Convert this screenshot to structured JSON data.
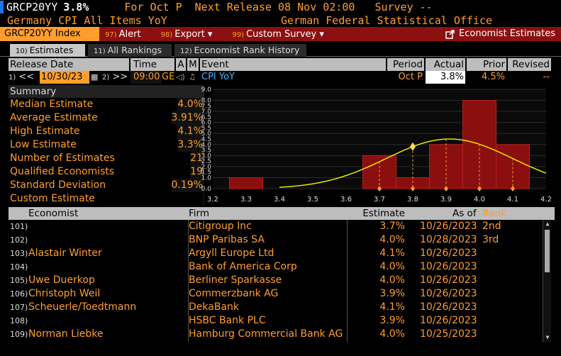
{
  "header": {
    "ticker": "GRCP20YY",
    "value": "3.8%",
    "for_text": "For Oct P",
    "next_release": "Next Release 08 Nov 02:00",
    "survey": "Survey --",
    "description": "Germany CPI All Items YoY",
    "source": "German Federal Statistical Office"
  },
  "toolbar": {
    "security": "GRCP20YY Index",
    "alert": {
      "num": "97)",
      "label": "Alert"
    },
    "export": {
      "num": "98)",
      "label": "Export ▾"
    },
    "custom_survey": {
      "num": "99)",
      "label": "Custom Survey ▾"
    },
    "economist_estimates": "Economist Estimates"
  },
  "tabs": [
    {
      "num": "10)",
      "label": "Estimates"
    },
    {
      "num": "11)",
      "label": "All Rankings"
    },
    {
      "num": "12)",
      "label": "Economist Rank History"
    }
  ],
  "release_header": {
    "release_date": "Release Date",
    "time": "Time",
    "a": "A",
    "m": "M",
    "event": "Event",
    "period": "Period",
    "actual": "Actual",
    "prior": "Prior",
    "revised": "Revised"
  },
  "release_row": {
    "prev_num": "1)",
    "prev": "<<",
    "date": "10/30/23",
    "next_num": "2)",
    "next": ">>",
    "time": "09:00",
    "zone": "GE",
    "event": "CPI YoY",
    "period": "Oct P",
    "actual": "3.8%",
    "prior": "4.5%",
    "revised": "--"
  },
  "summary": {
    "title": "Summary",
    "rows": [
      {
        "label": "Median Estimate",
        "value": "4.0%"
      },
      {
        "label": "Average Estimate",
        "value": "3.91%"
      },
      {
        "label": "High Estimate",
        "value": "4.1%"
      },
      {
        "label": "Low Estimate",
        "value": "3.3%"
      },
      {
        "label": "Number of Estimates",
        "value": "21"
      },
      {
        "label": "Qualified Economists",
        "value": "19"
      },
      {
        "label": "Standard Deviation",
        "value": "0.19%"
      },
      {
        "label": "Custom Estimate",
        "value": ""
      }
    ]
  },
  "chart_data": {
    "type": "bar",
    "x": [
      3.3,
      3.7,
      3.8,
      3.9,
      4.0,
      4.1
    ],
    "values": [
      1,
      3,
      1,
      4,
      8,
      4
    ],
    "xlim": [
      3.2,
      4.2
    ],
    "ylim": [
      0,
      9
    ],
    "x_ticks": [
      "3.2",
      "3.3",
      "3.4",
      "3.5",
      "3.6",
      "3.7",
      "3.8",
      "3.9",
      "4.0",
      "4.1",
      "4.2"
    ],
    "y_ticks": [
      "0.0",
      "1.0",
      "1.5",
      "2.0",
      "2.5",
      "3.0",
      "3.5",
      "4.0",
      "4.5",
      "5.0",
      "5.5",
      "6.0",
      "6.5",
      "7.0",
      "7.5",
      "8.0",
      "9.0"
    ],
    "markers": [
      3.7,
      3.8,
      3.9,
      4.0,
      4.1
    ],
    "bar_color": "#8b0f0f",
    "curve_color": "#e6e600",
    "marker_color": "#ff9e2c"
  },
  "table": {
    "headers": {
      "economist": "Economist",
      "firm": "Firm",
      "estimate": "Estimate",
      "as_of": "As of",
      "rank": "Rank",
      "sort": "↑"
    },
    "rows": [
      {
        "idx": "101)",
        "economist": "",
        "firm": "Citigroup Inc",
        "estimate": "3.7%",
        "as_of": "10/26/2023",
        "rank": "2nd"
      },
      {
        "idx": "102)",
        "economist": "",
        "firm": "BNP Paribas SA",
        "estimate": "4.0%",
        "as_of": "10/28/2023",
        "rank": "3rd"
      },
      {
        "idx": "103)",
        "economist": "Alastair Winter",
        "firm": "Argyll Europe Ltd",
        "estimate": "4.1%",
        "as_of": "10/26/2023",
        "rank": ""
      },
      {
        "idx": "104)",
        "economist": "",
        "firm": "Bank of America Corp",
        "estimate": "4.0%",
        "as_of": "10/26/2023",
        "rank": ""
      },
      {
        "idx": "105)",
        "economist": "Uwe Duerkop",
        "firm": "Berliner Sparkasse",
        "estimate": "4.0%",
        "as_of": "10/26/2023",
        "rank": ""
      },
      {
        "idx": "106)",
        "economist": "Christoph Weil",
        "firm": "Commerzbank AG",
        "estimate": "3.9%",
        "as_of": "10/26/2023",
        "rank": ""
      },
      {
        "idx": "107)",
        "economist": "Scheuerle/Toedtmann",
        "firm": "DekaBank",
        "estimate": "4.1%",
        "as_of": "10/26/2023",
        "rank": ""
      },
      {
        "idx": "108)",
        "economist": "",
        "firm": "HSBC Bank PLC",
        "estimate": "3.9%",
        "as_of": "10/26/2023",
        "rank": ""
      },
      {
        "idx": "109)",
        "economist": "Norman Liebke",
        "firm": "Hamburg Commercial Bank AG",
        "estimate": "4.0%",
        "as_of": "10/25/2023",
        "rank": ""
      }
    ]
  }
}
